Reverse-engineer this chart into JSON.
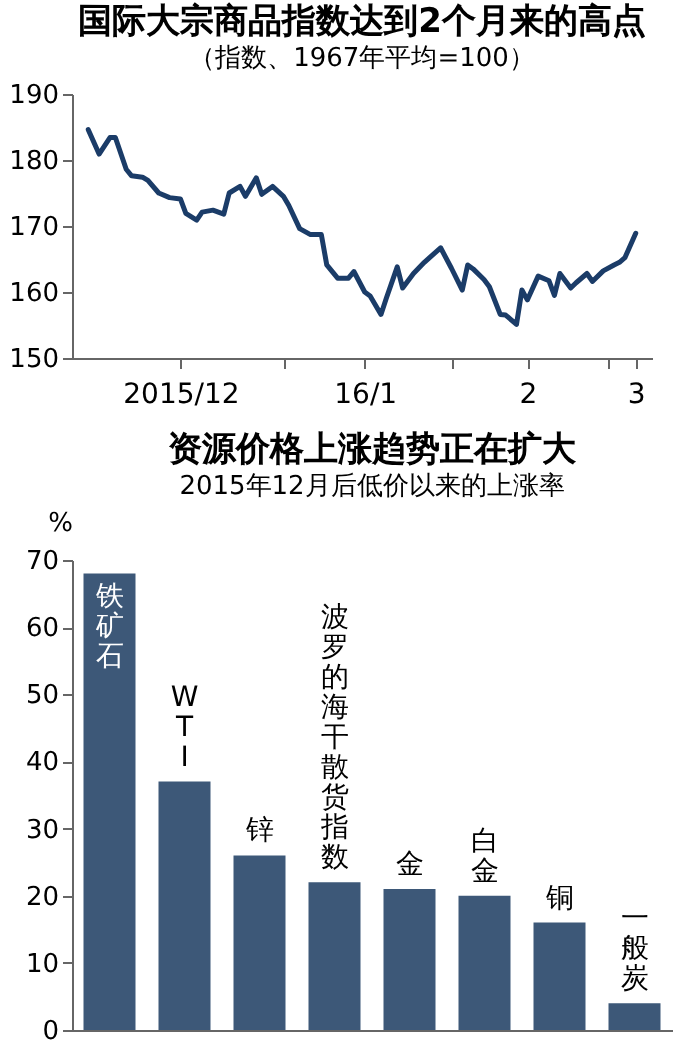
{
  "chart_data": [
    {
      "type": "line",
      "title": "国际大宗商品指数达到2个月来的高点",
      "subtitle": "（指数、1967年平均=100）",
      "x": [
        "2015-11-26",
        "2015-11-28",
        "2015-11-30",
        "2015-12-01",
        "2015-12-03",
        "2015-12-04",
        "2015-12-06",
        "2015-12-07",
        "2015-12-09",
        "2015-12-11",
        "2015-12-13",
        "2015-12-14",
        "2015-12-16",
        "2015-12-17",
        "2015-12-19",
        "2015-12-21",
        "2015-12-22",
        "2015-12-24",
        "2015-12-25",
        "2015-12-27",
        "2015-12-28",
        "2015-12-30",
        "2016-01-01",
        "2016-01-02",
        "2016-01-04",
        "2016-01-06",
        "2016-01-08",
        "2016-01-09",
        "2016-01-11",
        "2016-01-13",
        "2016-01-14",
        "2016-01-16",
        "2016-01-17",
        "2016-01-19",
        "2016-01-20",
        "2016-01-22",
        "2016-01-23",
        "2016-01-25",
        "2016-01-27",
        "2016-01-30",
        "2016-02-01",
        "2016-02-03",
        "2016-02-04",
        "2016-02-05",
        "2016-02-07",
        "2016-02-08",
        "2016-02-10",
        "2016-02-11",
        "2016-02-13",
        "2016-02-14",
        "2016-02-15",
        "2016-02-17",
        "2016-02-19",
        "2016-02-20",
        "2016-02-21",
        "2016-02-23",
        "2016-02-24",
        "2016-02-26",
        "2016-02-27",
        "2016-02-29",
        "2016-03-02",
        "2016-03-03",
        "2016-03-04",
        "2016-03-06"
      ],
      "series": [
        {
          "color": "#1b3c68",
          "values": [
            184.6,
            180.9,
            183.4,
            183.4,
            178.6,
            177.6,
            177.4,
            176.9,
            175.0,
            174.3,
            174.1,
            171.9,
            170.9,
            172.1,
            172.4,
            171.8,
            175.0,
            176.0,
            174.5,
            177.3,
            174.8,
            176.0,
            174.5,
            173.1,
            169.6,
            168.7,
            168.7,
            164.1,
            162.1,
            162.1,
            163.1,
            160.0,
            159.4,
            156.6,
            159.1,
            163.8,
            160.6,
            162.8,
            164.5,
            166.7,
            163.6,
            160.3,
            164.1,
            163.5,
            161.9,
            160.8,
            156.6,
            156.5,
            155.1,
            160.3,
            158.8,
            162.4,
            161.7,
            159.5,
            162.8,
            160.6,
            161.4,
            162.8,
            161.6,
            163.2,
            164.1,
            164.5,
            165.2,
            168.9
          ]
        }
      ],
      "xlim": [
        "2015-11-23",
        "2016-03-09"
      ],
      "xticks": [
        {
          "value": "2015-12-13",
          "label": "2015/12"
        },
        {
          "value": "2016-01-01",
          "label": null
        },
        {
          "value": "2016-01-16",
          "label": "16/1"
        },
        {
          "value": "2016-02-01",
          "label": null
        },
        {
          "value": "2016-02-15",
          "label": "2"
        },
        {
          "value": "2016-03-01",
          "label": null
        },
        {
          "value": "2016-03-06",
          "label": "3"
        }
      ],
      "ylim": [
        150,
        190
      ],
      "yticks": [
        150,
        160,
        170,
        180,
        190
      ],
      "grid": false,
      "line_style": "solid"
    },
    {
      "type": "bar",
      "title": "资源价格上涨趋势正在扩大",
      "subtitle": "2015年12月后低价以来的上涨率",
      "ylabel": "%",
      "categories": [
        "铁矿石",
        "WTI",
        "锌",
        "波罗的海干散货指数",
        "金",
        "白金",
        "铜",
        "一般炭"
      ],
      "series": [
        {
          "color": "#3d5878",
          "values": [
            68,
            37,
            26,
            22,
            21,
            20,
            16,
            4
          ]
        }
      ],
      "ylim": [
        0,
        70
      ],
      "yticks": [
        0,
        10,
        20,
        30,
        40,
        50,
        60,
        70
      ],
      "grid": false
    }
  ]
}
